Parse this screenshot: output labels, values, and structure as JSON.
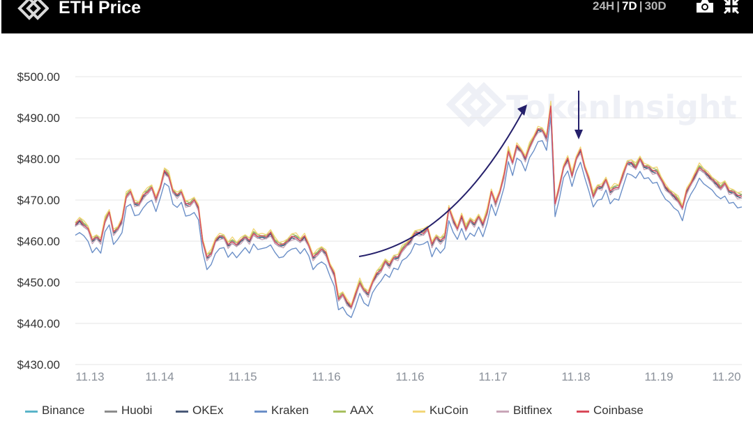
{
  "header": {
    "title": "ETH Price",
    "ranges": [
      {
        "label": "24H",
        "active": false
      },
      {
        "label": "7D",
        "active": true
      },
      {
        "label": "30D",
        "active": false
      }
    ],
    "separator": "|",
    "icons": [
      "logo-icon",
      "camera-icon",
      "shrink-icon"
    ]
  },
  "watermark": "TokenInsight",
  "chart_data": {
    "type": "line",
    "title": "ETH Price",
    "ylim": [
      430,
      500
    ],
    "y_ticks": [
      "$430.00",
      "$440.00",
      "$450.00",
      "$460.00",
      "$470.00",
      "$480.00",
      "$490.00",
      "$500.00"
    ],
    "x_ticks": [
      "11.13",
      "11.14",
      "11.15",
      "11.16",
      "11.16",
      "11.17",
      "11.18",
      "11.19",
      "11.20"
    ],
    "grid": true,
    "legend_position": "bottom",
    "base_series": [
      464,
      465,
      464,
      463,
      460,
      461,
      460,
      465,
      467,
      462,
      463,
      465,
      471,
      472,
      469,
      469,
      471,
      472,
      473,
      470,
      473,
      477,
      476,
      472,
      471,
      472,
      469,
      469,
      470,
      468,
      460,
      456,
      457,
      460,
      461,
      461,
      459,
      460,
      459,
      460,
      461,
      460,
      462,
      461,
      461,
      461,
      462,
      460,
      459,
      459,
      460,
      461,
      461,
      460,
      461,
      459,
      456,
      457,
      458,
      457,
      454,
      452,
      446,
      447,
      445,
      444,
      447,
      450,
      448,
      447,
      450,
      452,
      453,
      455,
      454,
      456,
      456,
      458,
      459,
      460,
      462,
      462,
      462,
      463,
      459,
      461,
      460,
      461,
      468,
      465,
      463,
      466,
      463,
      465,
      464,
      466,
      464,
      467,
      472,
      469,
      472,
      476,
      482,
      479,
      483,
      482,
      480,
      483,
      485,
      487,
      487,
      485,
      493,
      469,
      473,
      478,
      480,
      476,
      480,
      482,
      478,
      475,
      471,
      473,
      473,
      475,
      472,
      473,
      473,
      476,
      479,
      479,
      478,
      480,
      478,
      478,
      477,
      477,
      475,
      473,
      472,
      471,
      470,
      468,
      472,
      474,
      476,
      478,
      477,
      476,
      475,
      474,
      473,
      474,
      472,
      472,
      471,
      471
    ],
    "series": [
      {
        "name": "Binance",
        "color": "#5ab4c9",
        "offset": 0.0
      },
      {
        "name": "Huobi",
        "color": "#8c8c8c",
        "offset": 0.3
      },
      {
        "name": "OKEx",
        "color": "#4a5a78",
        "offset": -0.3
      },
      {
        "name": "Kraken",
        "color": "#6b8fc7",
        "offset": -2.8
      },
      {
        "name": "AAX",
        "color": "#a8c060",
        "offset": 0.5
      },
      {
        "name": "KuCoin",
        "color": "#f2d77a",
        "offset": 0.8
      },
      {
        "name": "Bitfinex",
        "color": "#c9a6b8",
        "offset": -0.5
      },
      {
        "name": "Coinbase",
        "color": "#d94a5a",
        "offset": 0.1
      }
    ]
  }
}
